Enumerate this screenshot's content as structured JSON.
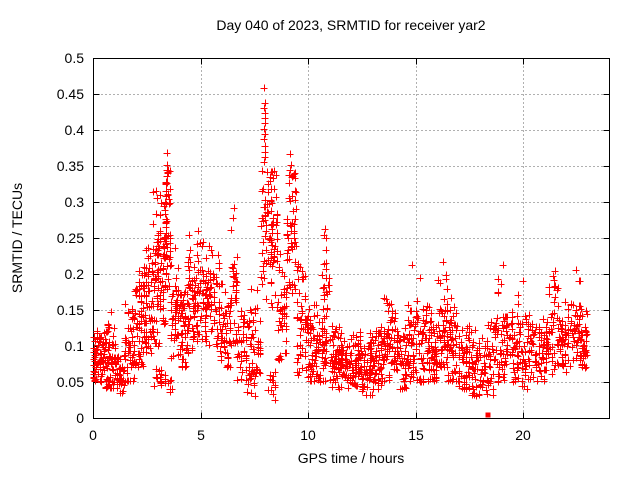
{
  "window": {
    "title": "Day 040 of 2023, SRMTID for receiver yar2"
  },
  "chart_data": {
    "type": "scatter",
    "title": "Day 040 of 2023, SRMTID for receiver yar2",
    "xlabel": "GPS time / hours",
    "ylabel": "SRMTID / TECUs",
    "xlim": [
      0,
      24
    ],
    "ylim": [
      0,
      0.5
    ],
    "xticks": [
      0,
      5,
      10,
      15,
      20
    ],
    "yticks": [
      0,
      0.05,
      0.1,
      0.15,
      0.2,
      0.25,
      0.3,
      0.35,
      0.4,
      0.45,
      0.5
    ],
    "grid": true,
    "grid_style": "dashed",
    "grid_color": "#b0b0b0",
    "legend": false,
    "marker": "plus",
    "marker_color": "#ff0000",
    "marker_size_px": 7,
    "x_data_range": [
      0.0,
      23.0
    ],
    "series_name": "SRMTID",
    "density_bins": [
      [
        0.0,
        0.5,
        60,
        0.05,
        0.135,
        0.085
      ],
      [
        0.5,
        1.0,
        55,
        0.04,
        0.15,
        0.08
      ],
      [
        1.0,
        1.45,
        45,
        0.035,
        0.115,
        0.065
      ],
      [
        1.45,
        1.95,
        50,
        0.05,
        0.175,
        0.1
      ],
      [
        1.95,
        2.35,
        50,
        0.07,
        0.205,
        0.13
      ],
      [
        2.35,
        2.75,
        55,
        0.09,
        0.245,
        0.15
      ],
      [
        2.75,
        3.15,
        60,
        0.1,
        0.32,
        0.2
      ],
      [
        2.8,
        3.2,
        12,
        0.035,
        0.075,
        0.055
      ],
      [
        3.15,
        3.4,
        35,
        0.12,
        0.3,
        0.21
      ],
      [
        3.35,
        3.6,
        40,
        0.15,
        0.345,
        0.26
      ],
      [
        3.3,
        3.7,
        10,
        0.03,
        0.07,
        0.05
      ],
      [
        3.6,
        4.0,
        40,
        0.08,
        0.26,
        0.15
      ],
      [
        4.0,
        4.4,
        45,
        0.07,
        0.2,
        0.12
      ],
      [
        4.4,
        4.8,
        50,
        0.09,
        0.26,
        0.16
      ],
      [
        4.8,
        5.3,
        55,
        0.1,
        0.26,
        0.17
      ],
      [
        5.3,
        5.9,
        55,
        0.1,
        0.245,
        0.16
      ],
      [
        5.9,
        6.4,
        50,
        0.07,
        0.2,
        0.12
      ],
      [
        6.4,
        6.7,
        30,
        0.1,
        0.285,
        0.16
      ],
      [
        6.7,
        7.3,
        38,
        0.05,
        0.16,
        0.1
      ],
      [
        7.1,
        7.6,
        12,
        0.03,
        0.08,
        0.05
      ],
      [
        7.3,
        7.8,
        38,
        0.06,
        0.19,
        0.11
      ],
      [
        7.8,
        8.6,
        85,
        0.14,
        0.345,
        0.27
      ],
      [
        8.1,
        8.5,
        12,
        0.025,
        0.07,
        0.05
      ],
      [
        8.6,
        9.0,
        40,
        0.08,
        0.25,
        0.14
      ],
      [
        9.0,
        9.45,
        50,
        0.15,
        0.34,
        0.27
      ],
      [
        9.45,
        9.9,
        42,
        0.06,
        0.25,
        0.13
      ],
      [
        9.9,
        10.4,
        50,
        0.05,
        0.16,
        0.1
      ],
      [
        10.4,
        10.85,
        42,
        0.05,
        0.15,
        0.09
      ],
      [
        10.65,
        11.0,
        22,
        0.13,
        0.255,
        0.19
      ],
      [
        11.0,
        11.5,
        50,
        0.04,
        0.135,
        0.08
      ],
      [
        11.5,
        12.0,
        50,
        0.04,
        0.125,
        0.075
      ],
      [
        12.0,
        12.5,
        50,
        0.035,
        0.12,
        0.075
      ],
      [
        12.5,
        13.0,
        50,
        0.03,
        0.12,
        0.07
      ],
      [
        13.0,
        13.5,
        50,
        0.04,
        0.13,
        0.08
      ],
      [
        13.5,
        14.1,
        55,
        0.05,
        0.17,
        0.1
      ],
      [
        14.1,
        14.6,
        45,
        0.04,
        0.13,
        0.08
      ],
      [
        14.6,
        15.0,
        40,
        0.05,
        0.2,
        0.1
      ],
      [
        15.0,
        15.6,
        50,
        0.05,
        0.19,
        0.1
      ],
      [
        15.6,
        16.0,
        45,
        0.05,
        0.16,
        0.09
      ],
      [
        16.0,
        16.5,
        50,
        0.07,
        0.215,
        0.12
      ],
      [
        16.5,
        17.0,
        45,
        0.05,
        0.17,
        0.1
      ],
      [
        17.0,
        17.6,
        50,
        0.04,
        0.14,
        0.08
      ],
      [
        17.6,
        18.2,
        50,
        0.03,
        0.13,
        0.07
      ],
      [
        18.2,
        18.8,
        45,
        0.03,
        0.14,
        0.08
      ],
      [
        18.8,
        19.3,
        45,
        0.05,
        0.205,
        0.1
      ],
      [
        19.3,
        19.9,
        45,
        0.05,
        0.19,
        0.1
      ],
      [
        19.9,
        20.5,
        45,
        0.04,
        0.15,
        0.09
      ],
      [
        20.5,
        21.1,
        45,
        0.05,
        0.16,
        0.09
      ],
      [
        21.1,
        21.7,
        45,
        0.06,
        0.2,
        0.12
      ],
      [
        21.7,
        22.2,
        40,
        0.06,
        0.17,
        0.11
      ],
      [
        22.2,
        22.7,
        45,
        0.08,
        0.2,
        0.13
      ],
      [
        22.7,
        23.05,
        35,
        0.07,
        0.155,
        0.11
      ]
    ],
    "peak_points": [
      [
        7.97,
        0.458
      ],
      [
        7.99,
        0.437
      ],
      [
        7.96,
        0.43
      ],
      [
        8.0,
        0.424
      ],
      [
        7.98,
        0.417
      ],
      [
        8.01,
        0.41
      ],
      [
        7.97,
        0.402
      ],
      [
        7.99,
        0.395
      ],
      [
        7.95,
        0.388
      ],
      [
        8.02,
        0.378
      ],
      [
        7.98,
        0.37
      ],
      [
        8.0,
        0.362
      ],
      [
        7.96,
        0.355
      ],
      [
        3.46,
        0.368
      ],
      [
        3.43,
        0.352
      ],
      [
        3.48,
        0.344
      ],
      [
        3.45,
        0.336
      ],
      [
        3.41,
        0.327
      ],
      [
        9.18,
        0.367
      ],
      [
        9.22,
        0.352
      ],
      [
        9.15,
        0.345
      ],
      [
        6.55,
        0.292
      ],
      [
        6.52,
        0.278
      ],
      [
        2.95,
        0.315
      ],
      [
        2.98,
        0.305
      ],
      [
        10.79,
        0.262
      ],
      [
        10.83,
        0.25
      ],
      [
        14.82,
        0.213
      ],
      [
        16.3,
        0.217
      ],
      [
        19.05,
        0.212
      ],
      [
        21.5,
        0.204
      ],
      [
        22.45,
        0.205
      ],
      [
        15.22,
        0.194
      ],
      [
        20.02,
        0.19
      ],
      [
        0.86,
        0.147
      ]
    ],
    "special_points": [
      {
        "x": 18.37,
        "y": 0.004,
        "marker": "filled-square",
        "color": "#ff0000"
      }
    ]
  }
}
